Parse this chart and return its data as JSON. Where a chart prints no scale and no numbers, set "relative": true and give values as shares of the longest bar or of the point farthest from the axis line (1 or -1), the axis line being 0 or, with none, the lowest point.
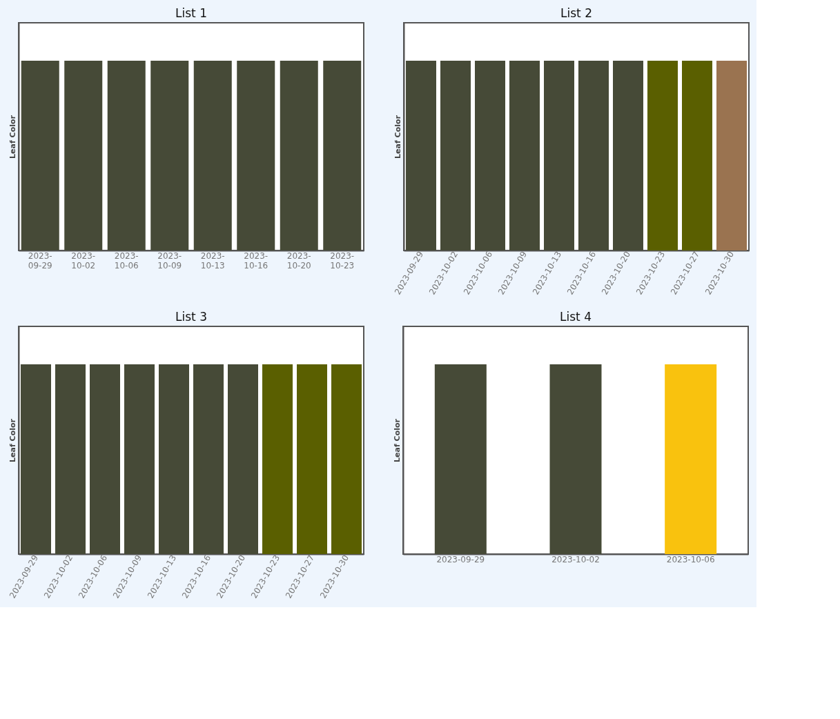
{
  "chart_data": [
    {
      "type": "bar",
      "title": "List 1",
      "ylabel": "Leaf Color",
      "relative": true,
      "categories": [
        "2023-09-29",
        "2023-10-02",
        "2023-10-06",
        "2023-10-09",
        "2023-10-13",
        "2023-10-16",
        "2023-10-20",
        "2023-10-23"
      ],
      "values": [
        1,
        1,
        1,
        1,
        1,
        1,
        1,
        1
      ],
      "colors": [
        "#464a37",
        "#464a37",
        "#464a37",
        "#464a37",
        "#464a37",
        "#464a37",
        "#464a37",
        "#464a37"
      ]
    },
    {
      "type": "bar",
      "title": "List 2",
      "ylabel": "Leaf Color",
      "relative": true,
      "categories": [
        "2023-09-29",
        "2023-10-02",
        "2023-10-06",
        "2023-10-09",
        "2023-10-13",
        "2023-10-16",
        "2023-10-20",
        "2023-10-23",
        "2023-10-27",
        "2023-10-30"
      ],
      "values": [
        1,
        1,
        1,
        1,
        1,
        1,
        1,
        1,
        1,
        1
      ],
      "colors": [
        "#464a37",
        "#464a37",
        "#464a37",
        "#464a37",
        "#464a37",
        "#464a37",
        "#464a37",
        "#5a5f00",
        "#5a5f00",
        "#9a7350"
      ]
    },
    {
      "type": "bar",
      "title": "List 3",
      "ylabel": "Leaf Color",
      "relative": true,
      "categories": [
        "2023-09-29",
        "2023-10-02",
        "2023-10-06",
        "2023-10-09",
        "2023-10-13",
        "2023-10-16",
        "2023-10-20",
        "2023-10-23",
        "2023-10-27",
        "2023-10-30"
      ],
      "values": [
        1,
        1,
        1,
        1,
        1,
        1,
        1,
        1,
        1,
        1
      ],
      "colors": [
        "#464a37",
        "#464a37",
        "#464a37",
        "#464a37",
        "#464a37",
        "#464a37",
        "#464a37",
        "#5a5f00",
        "#5a5f00",
        "#5a5f00"
      ]
    },
    {
      "type": "bar",
      "title": "List 4",
      "ylabel": "Leaf Color",
      "relative": true,
      "categories": [
        "2023-09-29",
        "2023-10-02",
        "2023-10-06"
      ],
      "values": [
        1,
        1,
        1
      ],
      "colors": [
        "#464a37",
        "#464a37",
        "#f9c20e"
      ]
    }
  ]
}
